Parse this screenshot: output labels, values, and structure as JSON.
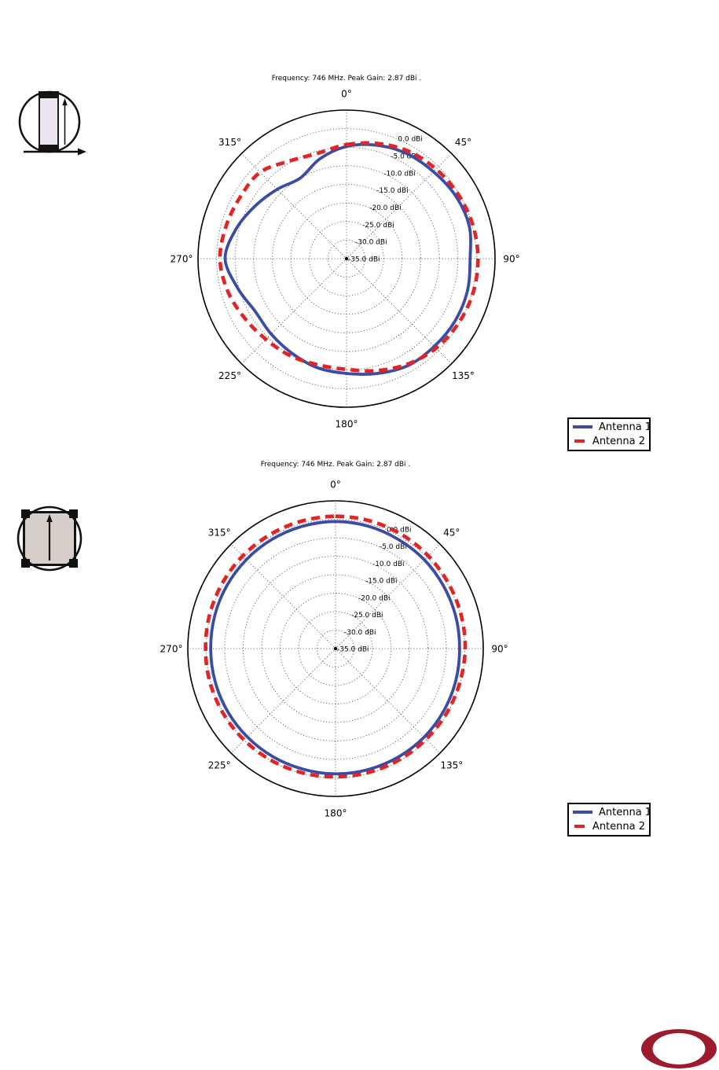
{
  "page": {
    "background": "#ffffff"
  },
  "colors": {
    "antenna1": "#3b4da3",
    "antenna2": "#e32426",
    "grid": "#3a3a3a",
    "axis": "#000000",
    "text": "#000000",
    "logo_ring": "#9c1b2c",
    "icon_photo_side": "#ece5f1",
    "icon_photo_top": "#d7cec9"
  },
  "icons": {
    "side_view": "antenna-side-view-orientation-icon",
    "top_view": "antenna-top-view-orientation-icon",
    "logo": "maroon-ellipse-ring-logo"
  },
  "legend": {
    "items": [
      {
        "label": "Antenna 1",
        "style": "solid"
      },
      {
        "label": "Antenna 2",
        "style": "dashed"
      }
    ]
  },
  "chart_data": [
    {
      "type": "line",
      "subtype": "polar",
      "title": "Frequency: 746 MHz. Peak Gain: 2.87 dBi .",
      "legend_position": "outside-lower-right",
      "grid": true,
      "r_range_dbi": [
        -35,
        5
      ],
      "radial_ticks_dbi": [
        0,
        -5,
        -10,
        -15,
        -20,
        -25,
        -30,
        -35
      ],
      "radial_tick_labels": [
        "0.0 dBi",
        "-5.0 dBi",
        "-10.0 dBi",
        "-15.0 dBi",
        "-20.0 dBi",
        "-25.0 dBi",
        "-30.0 dBi",
        "-35.0 dBi"
      ],
      "angle_ticks_deg": [
        0,
        45,
        90,
        135,
        180,
        225,
        270,
        315
      ],
      "angle_tick_labels": [
        "0°",
        "45°",
        "90°",
        "135°",
        "180°",
        "225°",
        "270°",
        "315°"
      ],
      "angles_deg": [
        0,
        15,
        30,
        45,
        60,
        75,
        90,
        105,
        120,
        135,
        150,
        165,
        180,
        195,
        210,
        225,
        240,
        255,
        270,
        285,
        300,
        315,
        330,
        345
      ],
      "series": [
        {
          "name": "Antenna 1",
          "values_dbi": [
            -4.8,
            -3.4,
            -2.4,
            -1.9,
            -1.1,
            -0.8,
            -1.7,
            -1.3,
            -1.3,
            -1.6,
            -1.8,
            -3.0,
            -4.1,
            -4.6,
            -5.6,
            -6.3,
            -6.6,
            -4.6,
            -2.3,
            -4.2,
            -6.6,
            -8.6,
            -10.0,
            -7.2
          ]
        },
        {
          "name": "Antenna 2",
          "values_dbi": [
            -4.3,
            -2.9,
            -1.6,
            -0.9,
            -0.3,
            0.2,
            0.4,
            0.3,
            -0.2,
            -0.9,
            -2.2,
            -3.8,
            -5.2,
            -5.4,
            -4.8,
            -4.3,
            -3.2,
            -1.8,
            -0.9,
            -1.4,
            -1.9,
            -2.1,
            -4.6,
            -5.6
          ]
        }
      ]
    },
    {
      "type": "line",
      "subtype": "polar",
      "title": "Frequency: 746 MHz. Peak Gain: 2.87 dBi .",
      "legend_position": "outside-lower-right",
      "grid": true,
      "r_range_dbi": [
        -35,
        5
      ],
      "radial_ticks_dbi": [
        0,
        -5,
        -10,
        -15,
        -20,
        -25,
        -30,
        -35
      ],
      "radial_tick_labels": [
        "0.0 dBi",
        "-5.0 dBi",
        "-10.0 dBi",
        "-15.0 dBi",
        "-20.0 dBi",
        "-25.0 dBi",
        "-30.0 dBi",
        "-35.0 dBi"
      ],
      "angle_ticks_deg": [
        0,
        45,
        90,
        135,
        180,
        225,
        270,
        315
      ],
      "angle_tick_labels": [
        "0°",
        "45°",
        "90°",
        "135°",
        "180°",
        "225°",
        "270°",
        "315°"
      ],
      "angles_deg": [
        0,
        15,
        30,
        45,
        60,
        75,
        90,
        105,
        120,
        135,
        150,
        165,
        180,
        195,
        210,
        225,
        240,
        255,
        270,
        285,
        300,
        315,
        330,
        345
      ],
      "series": [
        {
          "name": "Antenna 1",
          "values_dbi": [
            -0.6,
            -0.7,
            -0.9,
            -1.0,
            -1.2,
            -1.3,
            -1.4,
            -1.3,
            -1.2,
            -1.1,
            -1.1,
            -1.1,
            -1.1,
            -1.2,
            -1.2,
            -1.2,
            -1.2,
            -1.2,
            -1.2,
            -1.1,
            -1.0,
            -0.9,
            -0.8,
            -0.7
          ]
        },
        {
          "name": "Antenna 2",
          "values_dbi": [
            0.8,
            0.8,
            0.7,
            0.5,
            0.3,
            0.2,
            0.1,
            -0.1,
            -0.2,
            -0.3,
            -0.3,
            -0.3,
            -0.3,
            -0.2,
            -0.1,
            0.0,
            0.1,
            0.2,
            0.2,
            0.3,
            0.4,
            0.5,
            0.6,
            0.7
          ]
        }
      ]
    }
  ]
}
